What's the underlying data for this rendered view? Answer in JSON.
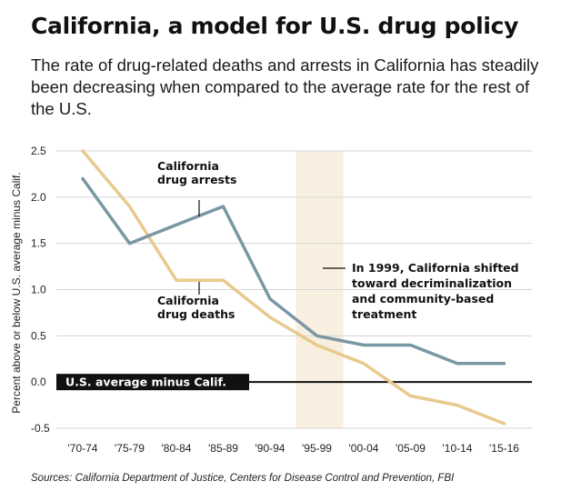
{
  "title": "California, a model for U.S. drug policy",
  "subtitle": "The rate of drug-related deaths and arrests in California has steadily been decreasing when compared to the average rate for the rest of the U.S.",
  "source": "Sources: California Department of Justice, Centers for Disease Control and Prevention, FBI",
  "colors": {
    "arrests": "#7a98a3",
    "deaths": "#e8c98e",
    "highlight": "#f8efe0",
    "grid": "#d6d6d6",
    "baseline": "#111111"
  },
  "chart_data": {
    "type": "line",
    "ylabel": "Percent above or below U.S. average minus Calif.",
    "ylim": [
      -0.5,
      2.5
    ],
    "yticks": [
      "2.5",
      "2.0",
      "1.5",
      "1.0",
      "0.5",
      "0.0",
      "-0.5"
    ],
    "categories": [
      "'70-74",
      "'75-79",
      "'80-84",
      "'85-89",
      "'90-94",
      "'95-99",
      "'00-04",
      "'05-09",
      "'10-14",
      "'15-16"
    ],
    "grid": true,
    "series": [
      {
        "name": "California drug arrests",
        "color": "#7a98a3",
        "values": [
          2.2,
          1.5,
          1.7,
          1.9,
          0.9,
          0.5,
          0.4,
          0.4,
          0.2,
          0.2
        ]
      },
      {
        "name": "California drug deaths",
        "color": "#e8c98e",
        "values": [
          2.5,
          1.9,
          1.1,
          1.1,
          0.7,
          0.4,
          0.2,
          -0.15,
          -0.25,
          -0.45
        ]
      }
    ],
    "baseline": {
      "value": 0,
      "label": "U.S. average minus Calif."
    },
    "highlight_period": "'95-99",
    "annotations": {
      "arrests": [
        "California",
        "drug arrests"
      ],
      "deaths": [
        "California",
        "drug deaths"
      ],
      "policy": [
        "In 1999, California shifted",
        "toward decriminalization",
        "and community-based",
        "treatment"
      ]
    }
  }
}
